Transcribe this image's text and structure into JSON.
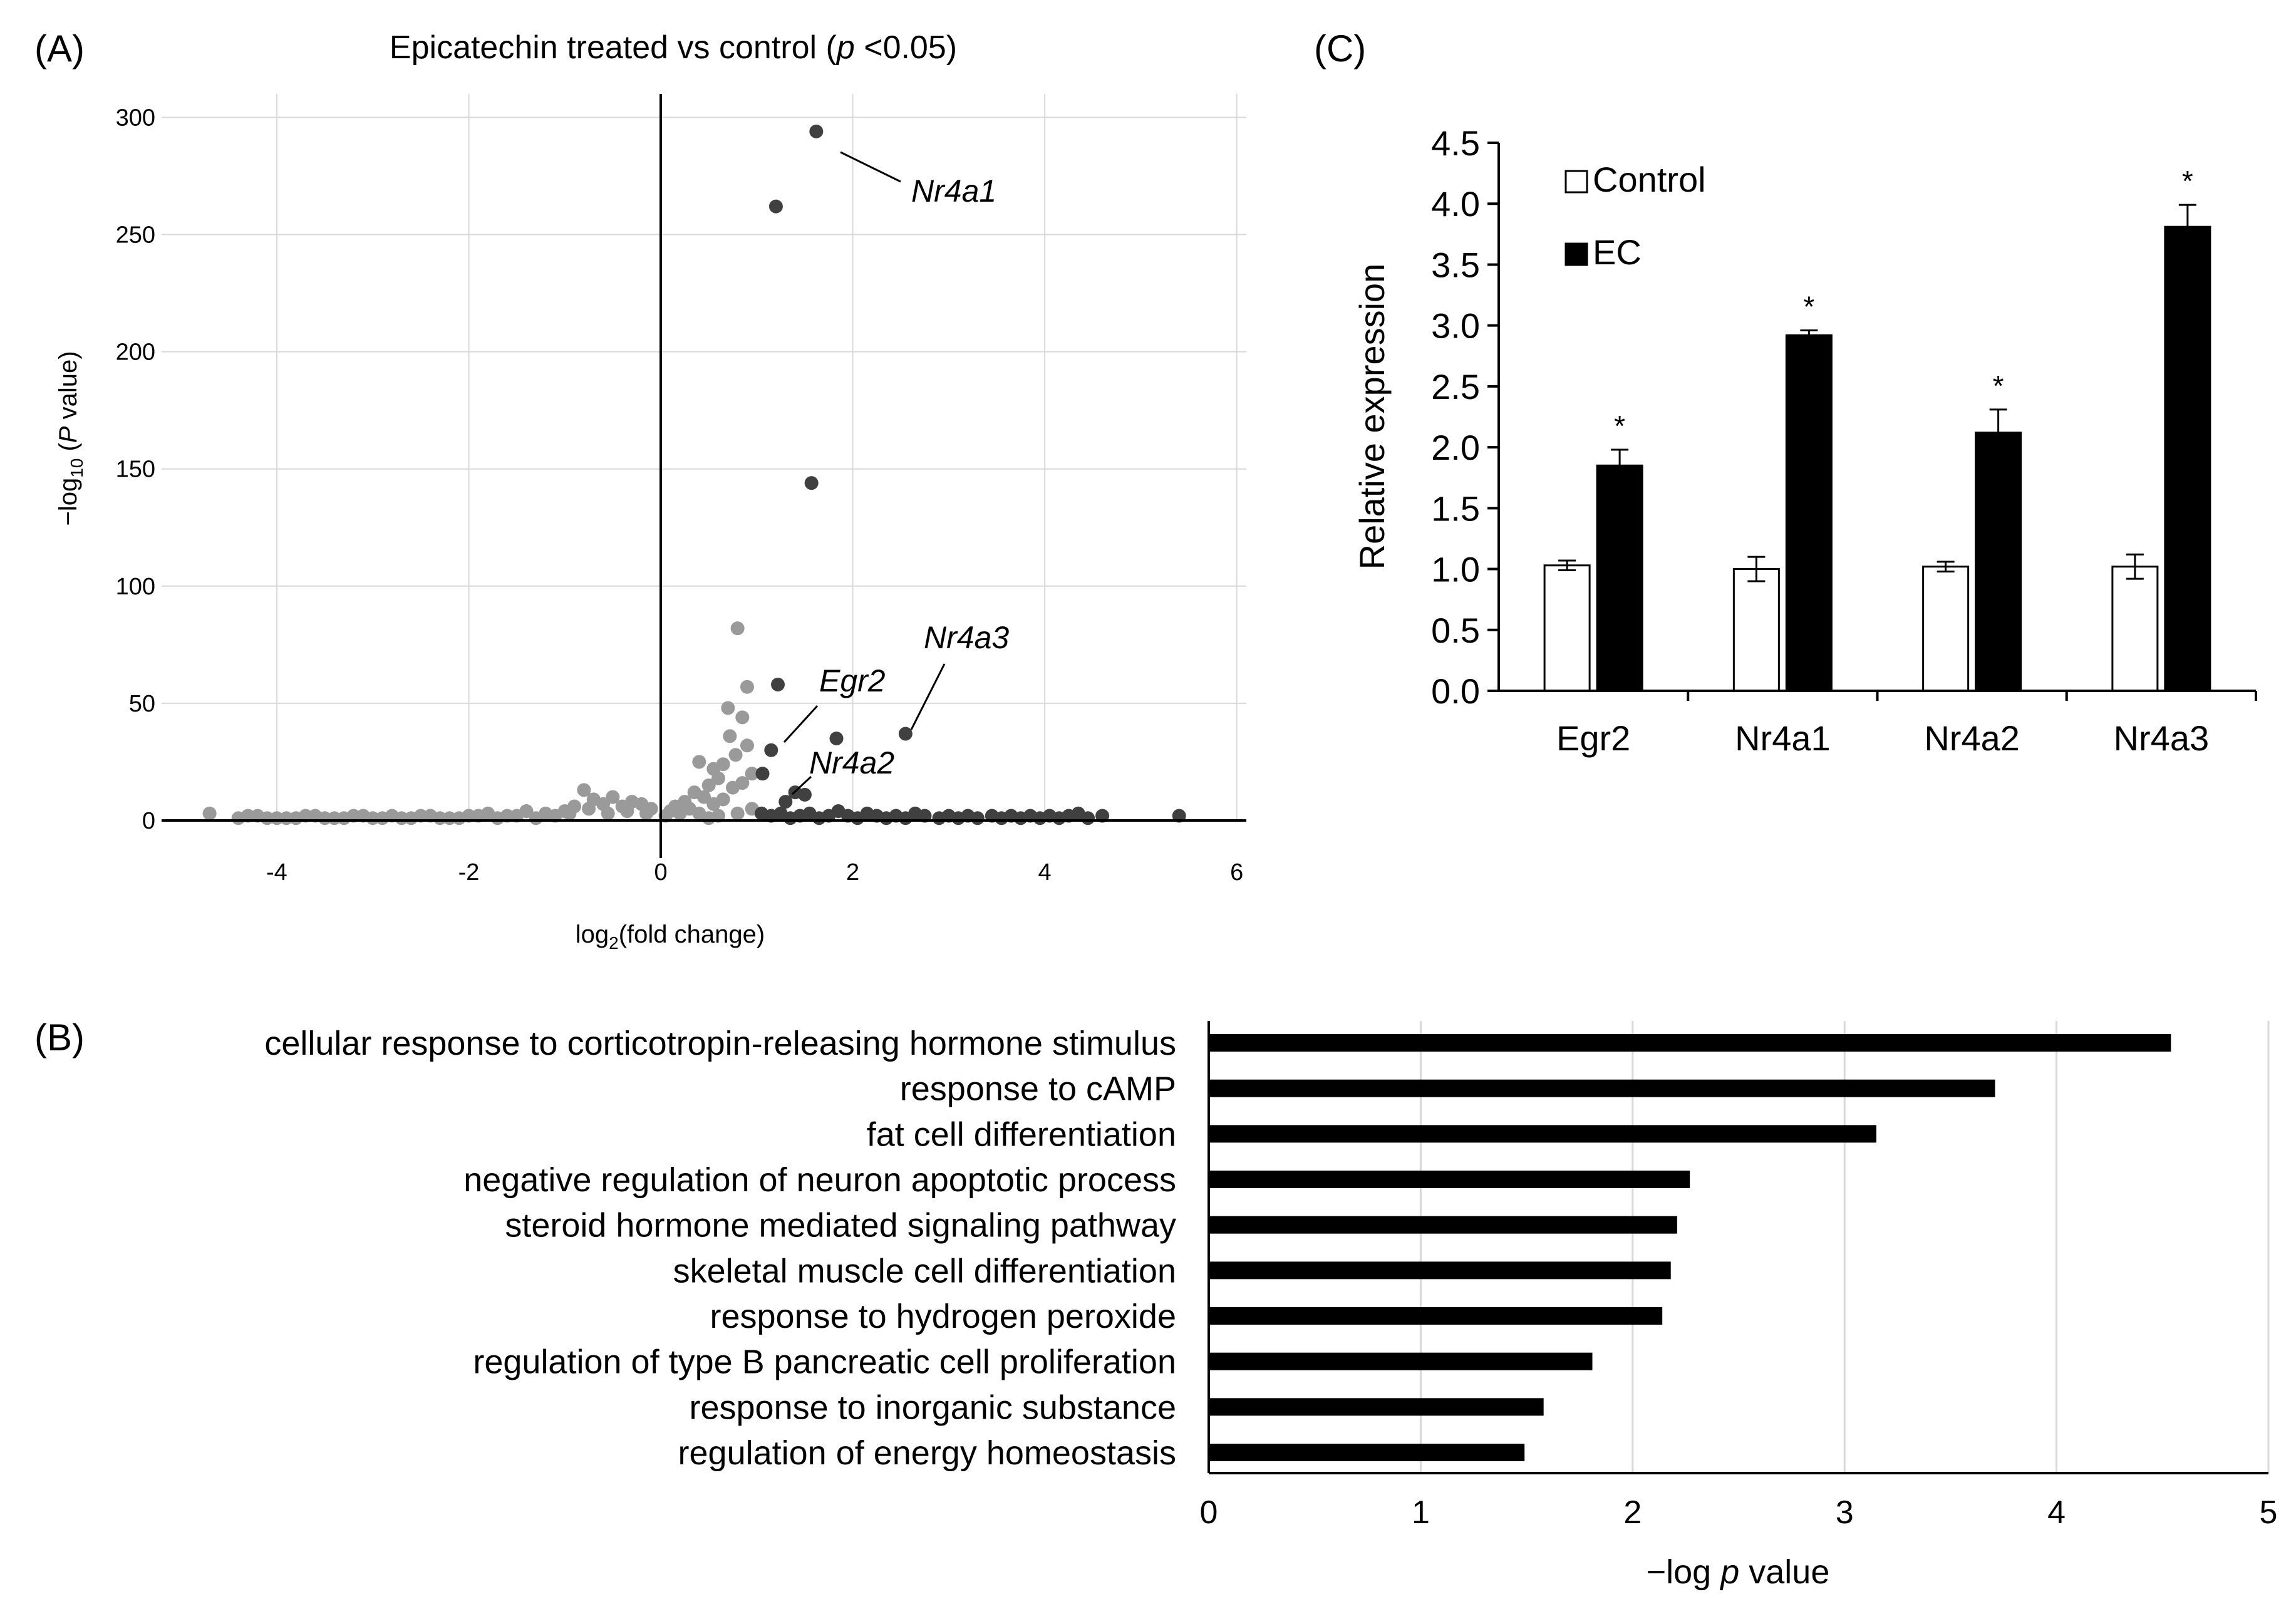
{
  "panels": {
    "a": {
      "label": "(A)"
    },
    "b": {
      "label": "(B)"
    },
    "c": {
      "label": "(C)"
    }
  },
  "colors": {
    "up": "#404040",
    "other": "#9a9a9a",
    "bar": "#000000",
    "grid": "#d9d9d9"
  },
  "chart_data": [
    {
      "id": "volcano",
      "type": "scatter",
      "title": "Epicatechin treated vs control (p <0.05)",
      "title_parts": {
        "pre": "Epicatechin treated vs control (",
        "italic": "p",
        "post": " <0.05)"
      },
      "xlabel": "log2(fold change)",
      "xlabel_parts": {
        "base": "log",
        "sub": "2",
        "rest": "(fold change)"
      },
      "ylabel": "−log10 (P value)",
      "ylabel_parts": {
        "pre": "−log",
        "sub": "10",
        "mid": " (",
        "italic": "P",
        "post": " value)"
      },
      "xlim": [
        -5.2,
        6.1
      ],
      "ylim": [
        0,
        310
      ],
      "xticks": [
        -4,
        -2,
        0,
        2,
        4,
        6
      ],
      "yticks": [
        0,
        50,
        100,
        150,
        200,
        250,
        300
      ],
      "grid": true,
      "annotations": [
        {
          "text": "Nr4a1",
          "x": 1.62,
          "y": 294
        },
        {
          "text": "Nr4a3",
          "x": 2.55,
          "y": 37
        },
        {
          "text": "Egr2",
          "x": 1.15,
          "y": 30
        },
        {
          "text": "Nr4a2",
          "x": 1.3,
          "y": 8
        }
      ],
      "series": [
        {
          "name": "upregulated",
          "points": [
            [
              1.62,
              294
            ],
            [
              1.2,
              262
            ],
            [
              1.57,
              144
            ],
            [
              1.22,
              58
            ],
            [
              1.83,
              35
            ],
            [
              2.55,
              37
            ],
            [
              1.15,
              30
            ],
            [
              1.06,
              20
            ],
            [
              1.5,
              11
            ],
            [
              1.4,
              12
            ],
            [
              1.3,
              8
            ],
            [
              1.05,
              3
            ],
            [
              1.15,
              2
            ],
            [
              1.25,
              3
            ],
            [
              1.35,
              1
            ],
            [
              1.45,
              2
            ],
            [
              1.55,
              3
            ],
            [
              1.65,
              1
            ],
            [
              1.75,
              2
            ],
            [
              1.85,
              4
            ],
            [
              1.95,
              2
            ],
            [
              2.05,
              1
            ],
            [
              2.15,
              3
            ],
            [
              2.25,
              2
            ],
            [
              2.35,
              1
            ],
            [
              2.45,
              2
            ],
            [
              2.55,
              1
            ],
            [
              2.65,
              3
            ],
            [
              2.75,
              2
            ],
            [
              2.9,
              1
            ],
            [
              3.0,
              2
            ],
            [
              3.1,
              1
            ],
            [
              3.2,
              2
            ],
            [
              3.3,
              1
            ],
            [
              3.45,
              2
            ],
            [
              3.55,
              1
            ],
            [
              3.65,
              2
            ],
            [
              3.75,
              1
            ],
            [
              3.85,
              2
            ],
            [
              3.95,
              1
            ],
            [
              4.05,
              2
            ],
            [
              4.15,
              1
            ],
            [
              4.25,
              2
            ],
            [
              4.35,
              3
            ],
            [
              4.45,
              1
            ],
            [
              4.6,
              2
            ],
            [
              5.4,
              2
            ]
          ]
        },
        {
          "name": "not_highlighted",
          "points": [
            [
              0.8,
              82
            ],
            [
              0.9,
              57
            ],
            [
              0.7,
              48
            ],
            [
              0.85,
              44
            ],
            [
              0.72,
              36
            ],
            [
              0.9,
              32
            ],
            [
              0.78,
              28
            ],
            [
              0.65,
              24
            ],
            [
              0.95,
              20
            ],
            [
              0.55,
              22
            ],
            [
              0.4,
              25
            ],
            [
              0.6,
              18
            ],
            [
              0.5,
              15
            ],
            [
              0.75,
              14
            ],
            [
              0.85,
              16
            ],
            [
              0.35,
              12
            ],
            [
              0.45,
              10
            ],
            [
              0.65,
              9
            ],
            [
              0.25,
              8
            ],
            [
              0.15,
              6
            ],
            [
              0.55,
              7
            ],
            [
              0.3,
              5
            ],
            [
              0.2,
              3
            ],
            [
              0.1,
              4
            ],
            [
              0.4,
              3
            ],
            [
              0.6,
              2
            ],
            [
              0.8,
              3
            ],
            [
              0.95,
              5
            ],
            [
              0.5,
              1
            ],
            [
              0.05,
              2
            ],
            [
              -0.8,
              13
            ],
            [
              -0.7,
              9
            ],
            [
              -0.5,
              10
            ],
            [
              -0.3,
              8
            ],
            [
              -0.2,
              7
            ],
            [
              -0.4,
              6
            ],
            [
              -0.6,
              7
            ],
            [
              -0.9,
              6
            ],
            [
              -0.1,
              5
            ],
            [
              -1.0,
              4
            ],
            [
              -1.2,
              3
            ],
            [
              -1.4,
              4
            ],
            [
              -1.6,
              2
            ],
            [
              -1.8,
              3
            ],
            [
              -2.0,
              2
            ],
            [
              -2.2,
              1
            ],
            [
              -2.4,
              2
            ],
            [
              -2.6,
              1
            ],
            [
              -2.8,
              2
            ],
            [
              -3.0,
              1
            ],
            [
              -3.2,
              2
            ],
            [
              -3.4,
              1
            ],
            [
              -3.6,
              2
            ],
            [
              -3.8,
              1
            ],
            [
              -4.0,
              1
            ],
            [
              -4.2,
              2
            ],
            [
              -4.4,
              1
            ],
            [
              -4.7,
              3
            ],
            [
              -1.1,
              2
            ],
            [
              -1.3,
              1
            ],
            [
              -1.5,
              2
            ],
            [
              -1.7,
              1
            ],
            [
              -1.9,
              2
            ],
            [
              -2.1,
              1
            ],
            [
              -2.3,
              1
            ],
            [
              -2.5,
              2
            ],
            [
              -2.7,
              1
            ],
            [
              -2.9,
              1
            ],
            [
              -3.1,
              2
            ],
            [
              -3.3,
              1
            ],
            [
              -3.5,
              1
            ],
            [
              -3.7,
              2
            ],
            [
              -3.9,
              1
            ],
            [
              -4.1,
              1
            ],
            [
              -4.3,
              2
            ],
            [
              -0.15,
              3
            ],
            [
              -0.35,
              4
            ],
            [
              -0.55,
              3
            ],
            [
              -0.75,
              5
            ],
            [
              -0.95,
              3
            ]
          ]
        }
      ]
    },
    {
      "id": "go-enrichment",
      "type": "bar",
      "orientation": "horizontal",
      "categories": [
        "cellular response to corticotropin-releasing hormone stimulus",
        "response to cAMP",
        "fat cell differentiation",
        "negative regulation of neuron apoptotic process",
        "steroid hormone mediated signaling pathway",
        "skeletal muscle cell differentiation",
        "response to hydrogen peroxide",
        "regulation of type B pancreatic cell proliferation",
        "response to inorganic substance",
        "regulation of energy homeostasis"
      ],
      "values": [
        4.54,
        3.71,
        3.15,
        2.27,
        2.21,
        2.18,
        2.14,
        1.81,
        1.58,
        1.49
      ],
      "xlabel": "−log p value",
      "xlabel_parts": {
        "pre": "−log ",
        "italic": "p",
        "post": " value"
      },
      "xlim": [
        0,
        5
      ],
      "xticks": [
        0,
        1,
        2,
        3,
        4,
        5
      ],
      "grid": true
    },
    {
      "id": "qpcr",
      "type": "bar",
      "categories": [
        "Egr2",
        "Nr4a1",
        "Nr4a2",
        "Nr4a3"
      ],
      "series": [
        {
          "name": "Control",
          "values": [
            1.03,
            1.0,
            1.02,
            1.02
          ],
          "errors": [
            0.04,
            0.1,
            0.04,
            0.1
          ]
        },
        {
          "name": "EC",
          "values": [
            1.85,
            2.92,
            2.12,
            3.81
          ],
          "errors": [
            0.13,
            0.04,
            0.19,
            0.18
          ]
        }
      ],
      "significance": [
        "*",
        "*",
        "*",
        "*"
      ],
      "ylabel": "Relative expression",
      "ylim": [
        0,
        4.5
      ],
      "yticks": [
        "0.0",
        "0.5",
        "1.0",
        "1.5",
        "2.0",
        "2.5",
        "3.0",
        "3.5",
        "4.0",
        "4.5"
      ],
      "legend": {
        "entries": [
          "Control",
          "EC"
        ],
        "placement": "top-left"
      }
    }
  ]
}
